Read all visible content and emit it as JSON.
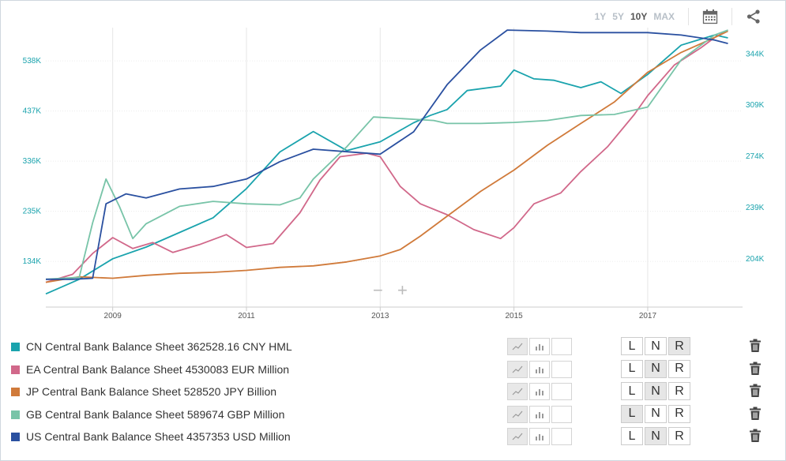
{
  "toolbar": {
    "ranges": [
      "1Y",
      "5Y",
      "10Y",
      "MAX"
    ],
    "active_range": "10Y",
    "calendar_icon": "calendar-icon",
    "share_icon": "share-icon"
  },
  "zoom_controls": {
    "minus": "−",
    "plus": "+"
  },
  "chart_data": {
    "type": "line",
    "x_ticks": [
      "2009",
      "2011",
      "2013",
      "2015",
      "2017"
    ],
    "x_range": [
      2008.0,
      2018.3
    ],
    "left_axis": {
      "ticks": [
        "134K",
        "235K",
        "336K",
        "437K",
        "538K"
      ],
      "tick_values": [
        134,
        235,
        336,
        437,
        538
      ],
      "range": [
        42,
        605
      ],
      "unit": "K"
    },
    "right_axis": {
      "ticks": [
        "204K",
        "239K",
        "274K",
        "309K",
        "344K"
      ],
      "tick_values": [
        204,
        239,
        274,
        309,
        344
      ],
      "range": [
        171,
        362
      ],
      "unit": "K"
    },
    "grid": "vertical",
    "series": [
      {
        "name": "CN Central Bank Balance Sheet",
        "axis": "right",
        "color": "#1aa3ad",
        "x": [
          2008.0,
          2008.5,
          2009.0,
          2009.5,
          2010.0,
          2010.5,
          2011.0,
          2011.5,
          2012.0,
          2012.5,
          2013.0,
          2013.5,
          2013.75,
          2014.0,
          2014.3,
          2014.8,
          2015.0,
          2015.3,
          2015.6,
          2016.0,
          2016.3,
          2016.6,
          2017.0,
          2017.5,
          2018.0,
          2018.2
        ],
        "values": [
          180,
          190,
          204,
          212,
          222,
          232,
          252,
          277,
          291,
          278,
          284,
          297,
          302,
          306,
          319,
          322,
          333,
          327,
          326,
          321,
          325,
          317,
          330,
          350,
          357,
          355
        ]
      },
      {
        "name": "EA Central Bank Balance Sheet",
        "axis": "left",
        "color": "#d1688a",
        "x": [
          2008.0,
          2008.4,
          2008.7,
          2009.0,
          2009.3,
          2009.6,
          2009.9,
          2010.3,
          2010.7,
          2011.0,
          2011.4,
          2011.8,
          2012.1,
          2012.4,
          2012.8,
          2013.0,
          2013.3,
          2013.6,
          2014.0,
          2014.4,
          2014.8,
          2015.0,
          2015.3,
          2015.7,
          2016.0,
          2016.4,
          2016.8,
          2017.0,
          2017.4,
          2017.8,
          2018.0,
          2018.2
        ],
        "values": [
          92,
          108,
          150,
          182,
          160,
          172,
          152,
          168,
          188,
          162,
          170,
          232,
          298,
          345,
          352,
          345,
          285,
          250,
          228,
          198,
          180,
          202,
          250,
          272,
          315,
          365,
          430,
          468,
          530,
          565,
          585,
          600
        ]
      },
      {
        "name": "JP Central Bank Balance Sheet",
        "axis": "left",
        "color": "#d07a3a",
        "x": [
          2008.0,
          2008.5,
          2009.0,
          2009.5,
          2010.0,
          2010.5,
          2011.0,
          2011.5,
          2012.0,
          2012.5,
          2013.0,
          2013.3,
          2013.6,
          2014.0,
          2014.5,
          2015.0,
          2015.5,
          2016.0,
          2016.5,
          2017.0,
          2017.5,
          2018.0,
          2018.2
        ],
        "values": [
          92,
          103,
          100,
          106,
          110,
          112,
          116,
          122,
          125,
          133,
          145,
          158,
          185,
          225,
          275,
          318,
          368,
          412,
          455,
          515,
          555,
          585,
          598
        ]
      },
      {
        "name": "GB Central Bank Balance Sheet",
        "axis": "left",
        "color": "#78c4a8",
        "x": [
          2008.0,
          2008.5,
          2008.7,
          2008.9,
          2009.1,
          2009.3,
          2009.5,
          2010.0,
          2010.5,
          2011.0,
          2011.5,
          2011.8,
          2012.0,
          2012.5,
          2012.9,
          2013.3,
          2013.8,
          2014.0,
          2014.5,
          2015.0,
          2015.5,
          2016.0,
          2016.5,
          2017.0,
          2017.5,
          2018.0,
          2018.2
        ],
        "values": [
          98,
          102,
          212,
          300,
          245,
          180,
          210,
          245,
          255,
          250,
          248,
          262,
          300,
          365,
          425,
          422,
          418,
          412,
          412,
          414,
          418,
          428,
          430,
          445,
          540,
          590,
          600
        ]
      },
      {
        "name": "US Central Bank Balance Sheet",
        "axis": "left",
        "color": "#2a50a0",
        "x": [
          2008.0,
          2008.4,
          2008.7,
          2008.9,
          2009.2,
          2009.5,
          2010.0,
          2010.5,
          2011.0,
          2011.5,
          2012.0,
          2012.5,
          2013.0,
          2013.5,
          2014.0,
          2014.5,
          2014.9,
          2015.5,
          2016.0,
          2017.0,
          2017.5,
          2018.0,
          2018.2
        ],
        "values": [
          98,
          98,
          100,
          250,
          270,
          262,
          280,
          285,
          300,
          335,
          360,
          355,
          350,
          395,
          490,
          560,
          600,
          598,
          595,
          595,
          590,
          580,
          573
        ]
      }
    ]
  },
  "legend": [
    {
      "label": "CN Central Bank Balance Sheet",
      "value": "362528.16 CNY HML",
      "color": "#1aa3ad",
      "scale": "R"
    },
    {
      "label": "EA Central Bank Balance Sheet",
      "value": "4530083 EUR Million",
      "color": "#d1688a",
      "scale": "N"
    },
    {
      "label": "JP Central Bank Balance Sheet",
      "value": "528520 JPY Billion",
      "color": "#d07a3a",
      "scale": "N"
    },
    {
      "label": "GB Central Bank Balance Sheet",
      "value": "589674 GBP Million",
      "color": "#78c4a8",
      "scale": "L"
    },
    {
      "label": "US Central Bank Balance Sheet",
      "value": "4357353 USD Million",
      "color": "#2a50a0",
      "scale": "N"
    }
  ],
  "scale_buttons": [
    "L",
    "N",
    "R"
  ]
}
